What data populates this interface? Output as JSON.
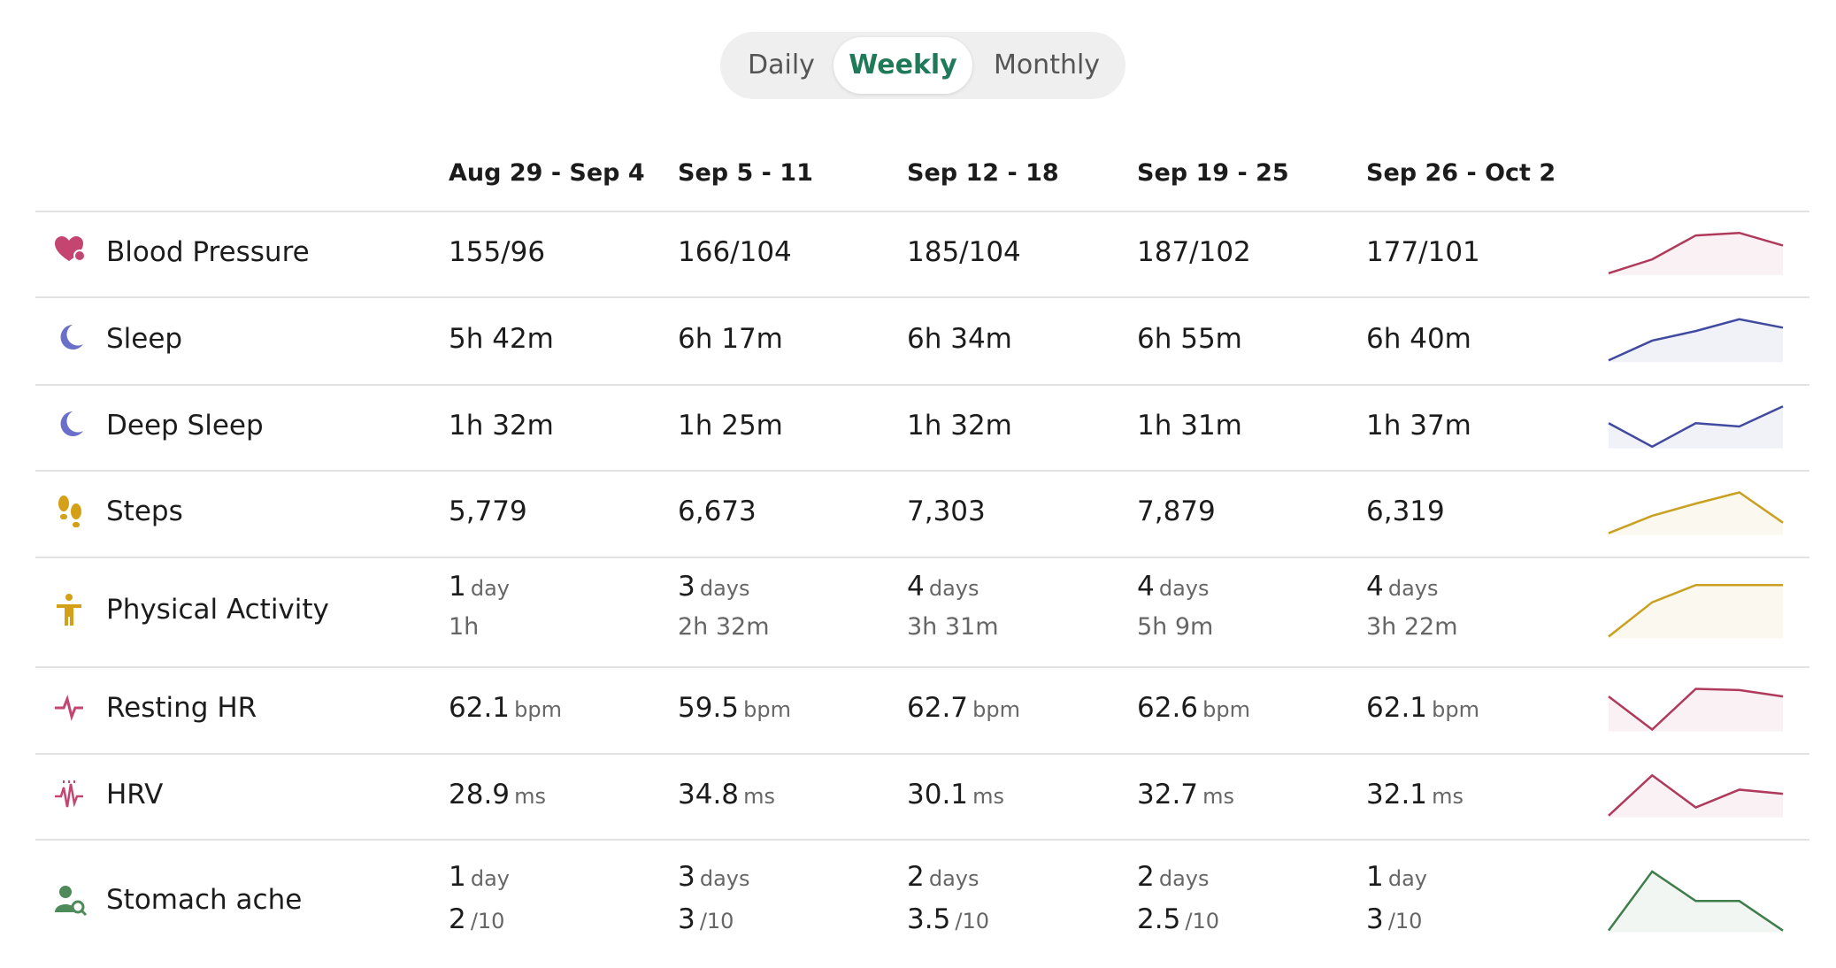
{
  "tabs": [
    "Daily",
    "Weekly",
    "Monthly"
  ],
  "active_tab": 1,
  "columns": [
    "Aug 29 - Sep 4",
    "Sep 5 - 11",
    "Sep 12 - 18",
    "Sep 19 - 25",
    "Sep 26 - Oct 2"
  ],
  "rows": [
    {
      "name": "Blood Pressure",
      "color": "#c4456f",
      "line_color": "#b03a5b",
      "cells": [
        {
          "main": "155/96"
        },
        {
          "main": "166/104"
        },
        {
          "main": "185/104"
        },
        {
          "main": "187/102"
        },
        {
          "main": "177/101"
        }
      ],
      "trend": [
        155,
        166,
        185,
        187,
        177
      ]
    },
    {
      "name": "Sleep",
      "color": "#6b6fc9",
      "line_color": "#3f4aa0",
      "cells": [
        {
          "main": "5h 42m"
        },
        {
          "main": "6h 17m"
        },
        {
          "main": "6h 34m"
        },
        {
          "main": "6h 55m"
        },
        {
          "main": "6h 40m"
        }
      ],
      "trend": [
        342,
        377,
        394,
        415,
        400
      ]
    },
    {
      "name": "Deep Sleep",
      "color": "#6b6fc9",
      "line_color": "#3f4aa0",
      "cells": [
        {
          "main": "1h 32m"
        },
        {
          "main": "1h 25m"
        },
        {
          "main": "1h 32m"
        },
        {
          "main": "1h 31m"
        },
        {
          "main": "1h 37m"
        }
      ],
      "trend": [
        92,
        85,
        92,
        91,
        97
      ]
    },
    {
      "name": "Steps",
      "color": "#d4a017",
      "line_color": "#c9a020",
      "cells": [
        {
          "main": "5,779"
        },
        {
          "main": "6,673"
        },
        {
          "main": "7,303"
        },
        {
          "main": "7,879"
        },
        {
          "main": "6,319"
        }
      ],
      "trend": [
        5779,
        6673,
        7303,
        7879,
        6319
      ]
    },
    {
      "name": "Physical Activity",
      "color": "#d4a017",
      "line_color": "#c9a020",
      "cells": [
        {
          "main": "1",
          "unit": "day",
          "sub": "1h"
        },
        {
          "main": "3",
          "unit": "days",
          "sub": "2h 32m"
        },
        {
          "main": "4",
          "unit": "days",
          "sub": "3h 31m"
        },
        {
          "main": "4",
          "unit": "days",
          "sub": "5h 9m"
        },
        {
          "main": "4",
          "unit": "days",
          "sub": "3h 22m"
        }
      ],
      "trend": [
        1,
        3,
        4,
        4,
        4
      ]
    },
    {
      "name": "Resting HR",
      "color": "#c4456f",
      "line_color": "#b03a5b",
      "cells": [
        {
          "main": "62.1",
          "unit": "bpm"
        },
        {
          "main": "59.5",
          "unit": "bpm"
        },
        {
          "main": "62.7",
          "unit": "bpm"
        },
        {
          "main": "62.6",
          "unit": "bpm"
        },
        {
          "main": "62.1",
          "unit": "bpm"
        }
      ],
      "trend": [
        62.1,
        59.5,
        62.7,
        62.6,
        62.1
      ]
    },
    {
      "name": "HRV",
      "color": "#c4456f",
      "line_color": "#b03a5b",
      "cells": [
        {
          "main": "28.9",
          "unit": "ms"
        },
        {
          "main": "34.8",
          "unit": "ms"
        },
        {
          "main": "30.1",
          "unit": "ms"
        },
        {
          "main": "32.7",
          "unit": "ms"
        },
        {
          "main": "32.1",
          "unit": "ms"
        }
      ],
      "trend": [
        28.9,
        34.8,
        30.1,
        32.7,
        32.1
      ]
    },
    {
      "name": "Stomach ache",
      "color": "#4f8a5b",
      "line_color": "#3e7d4c",
      "cells": [
        {
          "main": "1",
          "unit": "day",
          "sub": "2",
          "sub_unit": "/10"
        },
        {
          "main": "3",
          "unit": "days",
          "sub": "3",
          "sub_unit": "/10"
        },
        {
          "main": "2",
          "unit": "days",
          "sub": "3.5",
          "sub_unit": "/10"
        },
        {
          "main": "2",
          "unit": "days",
          "sub": "2.5",
          "sub_unit": "/10"
        },
        {
          "main": "1",
          "unit": "day",
          "sub": "3",
          "sub_unit": "/10"
        }
      ],
      "trend": [
        1,
        3,
        2,
        2,
        1
      ]
    }
  ]
}
